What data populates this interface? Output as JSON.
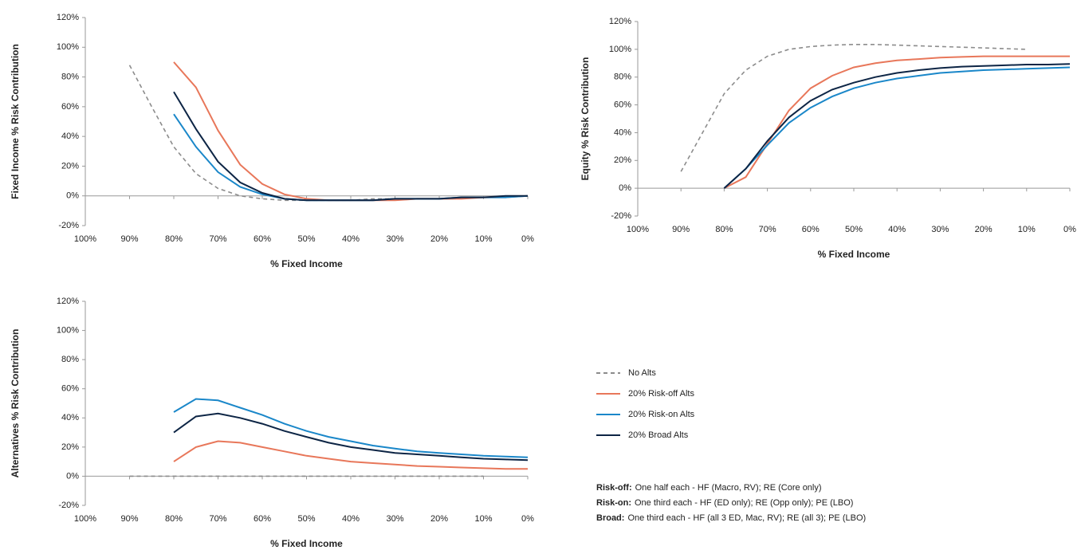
{
  "chart_data": [
    {
      "type": "line",
      "xlabel": "% Fixed Income",
      "ylabel": "Fixed Income % Risk Contribution",
      "x": [
        90,
        85,
        80,
        75,
        70,
        65,
        60,
        55,
        50,
        45,
        40,
        35,
        30,
        25,
        20,
        15,
        10,
        5,
        0
      ],
      "xlim": [
        100,
        0
      ],
      "xticks": [
        {
          "value": 100,
          "label": "100%"
        },
        {
          "value": 90,
          "label": "90%"
        },
        {
          "value": 80,
          "label": "80%"
        },
        {
          "value": 70,
          "label": "70%"
        },
        {
          "value": 60,
          "label": "60%"
        },
        {
          "value": 50,
          "label": "50%"
        },
        {
          "value": 40,
          "label": "40%"
        },
        {
          "value": 30,
          "label": "30%"
        },
        {
          "value": 20,
          "label": "20%"
        },
        {
          "value": 10,
          "label": "10%"
        },
        {
          "value": 0,
          "label": "0%"
        }
      ],
      "ylim": [
        -20,
        120
      ],
      "yticks": [
        {
          "value": -20,
          "label": "-20%"
        },
        {
          "value": 0,
          "label": "0%"
        },
        {
          "value": 20,
          "label": "20%"
        },
        {
          "value": 40,
          "label": "40%"
        },
        {
          "value": 60,
          "label": "60%"
        },
        {
          "value": 80,
          "label": "80%"
        },
        {
          "value": 100,
          "label": "100%"
        },
        {
          "value": 120,
          "label": "120%"
        }
      ],
      "series": [
        {
          "name": "No Alts",
          "color": "#8c8c8c",
          "dashed": true,
          "values": [
            88,
            60,
            33,
            15,
            5,
            0,
            -2,
            -3,
            -3,
            -3,
            -3,
            -2,
            -2,
            -2,
            -2,
            -1,
            -1,
            null,
            null
          ]
        },
        {
          "name": "20% Risk-off Alts",
          "color": "#e8775a",
          "dashed": false,
          "values": [
            null,
            null,
            90,
            73,
            44,
            21,
            8,
            1,
            -2,
            -3,
            -3,
            -3,
            -3,
            -2,
            -2,
            -2,
            -1,
            -1,
            0
          ]
        },
        {
          "name": "20% Risk-on Alts",
          "color": "#1a87c9",
          "dashed": false,
          "values": [
            null,
            null,
            55,
            33,
            16,
            6,
            1,
            -2,
            -3,
            -3,
            -3,
            -3,
            -2,
            -2,
            -2,
            -1,
            -1,
            -1,
            0
          ]
        },
        {
          "name": "20% Broad Alts",
          "color": "#0d2545",
          "dashed": false,
          "values": [
            null,
            null,
            70,
            45,
            23,
            9,
            2,
            -2,
            -3,
            -3,
            -3,
            -3,
            -2,
            -2,
            -2,
            -1,
            -1,
            0,
            0
          ]
        }
      ]
    },
    {
      "type": "line",
      "xlabel": "% Fixed Income",
      "ylabel": "Equity % Risk Contribution",
      "x": [
        90,
        85,
        80,
        75,
        70,
        65,
        60,
        55,
        50,
        45,
        40,
        35,
        30,
        25,
        20,
        15,
        10,
        5,
        0
      ],
      "xlim": [
        100,
        0
      ],
      "xticks": [
        {
          "value": 100,
          "label": "100%"
        },
        {
          "value": 90,
          "label": "90%"
        },
        {
          "value": 80,
          "label": "80%"
        },
        {
          "value": 70,
          "label": "70%"
        },
        {
          "value": 60,
          "label": "60%"
        },
        {
          "value": 50,
          "label": "50%"
        },
        {
          "value": 40,
          "label": "40%"
        },
        {
          "value": 30,
          "label": "30%"
        },
        {
          "value": 20,
          "label": "20%"
        },
        {
          "value": 10,
          "label": "10%"
        },
        {
          "value": 0,
          "label": "0%"
        }
      ],
      "ylim": [
        -20,
        120
      ],
      "yticks": [
        {
          "value": -20,
          "label": "-20%"
        },
        {
          "value": 0,
          "label": "0%"
        },
        {
          "value": 20,
          "label": "20%"
        },
        {
          "value": 40,
          "label": "40%"
        },
        {
          "value": 60,
          "label": "60%"
        },
        {
          "value": 80,
          "label": "80%"
        },
        {
          "value": 100,
          "label": "100%"
        },
        {
          "value": 120,
          "label": "120%"
        }
      ],
      "series": [
        {
          "name": "No Alts",
          "color": "#8c8c8c",
          "dashed": true,
          "values": [
            12,
            40,
            68,
            85,
            95,
            100,
            102,
            103,
            103.5,
            103.5,
            103,
            102.5,
            102,
            101.5,
            101,
            100.5,
            100,
            null,
            null
          ]
        },
        {
          "name": "20% Risk-off Alts",
          "color": "#e8775a",
          "dashed": false,
          "values": [
            null,
            null,
            0,
            8,
            32,
            56,
            72,
            81,
            87,
            90,
            92,
            93,
            94,
            94.5,
            95,
            95,
            95,
            95,
            95
          ]
        },
        {
          "name": "20% Risk-on Alts",
          "color": "#1a87c9",
          "dashed": false,
          "values": [
            null,
            null,
            0,
            14,
            31,
            47,
            58,
            66,
            72,
            76,
            79,
            81,
            83,
            84,
            85,
            85.5,
            86,
            86.5,
            87
          ]
        },
        {
          "name": "20% Broad Alts",
          "color": "#0d2545",
          "dashed": false,
          "values": [
            null,
            null,
            0,
            14,
            34,
            51,
            63,
            71,
            76,
            80,
            83,
            85,
            86.5,
            87.5,
            88,
            88.5,
            89,
            89,
            89.5
          ]
        }
      ]
    },
    {
      "type": "line",
      "xlabel": "% Fixed Income",
      "ylabel": "Alternatives % Risk Contribution",
      "x": [
        90,
        85,
        80,
        75,
        70,
        65,
        60,
        55,
        50,
        45,
        40,
        35,
        30,
        25,
        20,
        15,
        10,
        5,
        0
      ],
      "xlim": [
        100,
        0
      ],
      "xticks": [
        {
          "value": 100,
          "label": "100%"
        },
        {
          "value": 90,
          "label": "90%"
        },
        {
          "value": 80,
          "label": "80%"
        },
        {
          "value": 70,
          "label": "70%"
        },
        {
          "value": 60,
          "label": "60%"
        },
        {
          "value": 50,
          "label": "50%"
        },
        {
          "value": 40,
          "label": "40%"
        },
        {
          "value": 30,
          "label": "30%"
        },
        {
          "value": 20,
          "label": "20%"
        },
        {
          "value": 10,
          "label": "10%"
        },
        {
          "value": 0,
          "label": "0%"
        }
      ],
      "ylim": [
        -20,
        120
      ],
      "yticks": [
        {
          "value": -20,
          "label": "-20%"
        },
        {
          "value": 0,
          "label": "0%"
        },
        {
          "value": 20,
          "label": "20%"
        },
        {
          "value": 40,
          "label": "40%"
        },
        {
          "value": 60,
          "label": "60%"
        },
        {
          "value": 80,
          "label": "80%"
        },
        {
          "value": 100,
          "label": "100%"
        },
        {
          "value": 120,
          "label": "120%"
        }
      ],
      "legend": true,
      "series": [
        {
          "name": "No Alts",
          "color": "#8c8c8c",
          "dashed": true,
          "values": [
            0,
            0,
            0,
            0,
            0,
            0,
            0,
            0,
            0,
            0,
            0,
            0,
            0,
            0,
            0,
            0,
            0,
            null,
            null
          ]
        },
        {
          "name": "20% Risk-off Alts",
          "color": "#e8775a",
          "dashed": false,
          "values": [
            null,
            null,
            10,
            20,
            24,
            23,
            20,
            17,
            14,
            12,
            10,
            9,
            8,
            7,
            6.5,
            6,
            5.5,
            5,
            5
          ]
        },
        {
          "name": "20% Risk-on Alts",
          "color": "#1a87c9",
          "dashed": false,
          "values": [
            null,
            null,
            44,
            53,
            52,
            47,
            42,
            36,
            31,
            27,
            24,
            21,
            19,
            17,
            16,
            15,
            14,
            13.5,
            13
          ]
        },
        {
          "name": "20% Broad Alts",
          "color": "#0d2545",
          "dashed": false,
          "values": [
            null,
            null,
            30,
            41,
            43,
            40,
            36,
            31,
            27,
            23,
            20,
            18,
            16,
            15,
            14,
            13,
            12,
            11.5,
            11
          ]
        }
      ]
    }
  ],
  "notes": [
    {
      "label": "Risk-off:",
      "text": "One half each - HF (Macro, RV); RE (Core only)"
    },
    {
      "label": "Risk-on:",
      "text": "One third each - HF (ED only); RE (Opp only); PE (LBO)"
    },
    {
      "label": "Broad:",
      "text": "One third each - HF (all 3 ED, Mac, RV); RE (all 3); PE (LBO)"
    }
  ]
}
